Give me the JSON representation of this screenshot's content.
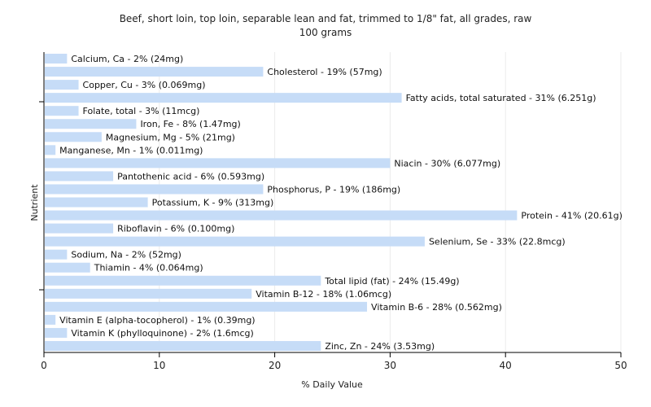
{
  "title_line1": "Beef, short loin, top loin, separable lean and fat, trimmed to 1/8\" fat, all grades, raw",
  "title_line2": "100 grams",
  "colors": {
    "bar": "#c6dcf7",
    "grid": "#ebebeb",
    "axis": "#000000"
  },
  "chart_data": {
    "type": "bar",
    "orientation": "horizontal",
    "xlabel": "% Daily Value",
    "ylabel": "Nutrient",
    "xlim": [
      0,
      50
    ],
    "xticks": [
      0,
      10,
      20,
      30,
      40,
      50
    ],
    "grid": true,
    "categories": [
      "Calcium, Ca",
      "Cholesterol",
      "Copper, Cu",
      "Fatty acids, total saturated",
      "Folate, total",
      "Iron, Fe",
      "Magnesium, Mg",
      "Manganese, Mn",
      "Niacin",
      "Pantothenic acid",
      "Phosphorus, P",
      "Potassium, K",
      "Protein",
      "Riboflavin",
      "Selenium, Se",
      "Sodium, Na",
      "Thiamin",
      "Total lipid (fat)",
      "Vitamin B-12",
      "Vitamin B-6",
      "Vitamin E (alpha-tocopherol)",
      "Vitamin K (phylloquinone)",
      "Zinc, Zn"
    ],
    "values": [
      2,
      19,
      3,
      31,
      3,
      8,
      5,
      1,
      30,
      6,
      19,
      9,
      41,
      6,
      33,
      2,
      4,
      24,
      18,
      28,
      1,
      2,
      24
    ],
    "labels": [
      "Calcium, Ca - 2% (24mg)",
      "Cholesterol - 19% (57mg)",
      "Copper, Cu - 3% (0.069mg)",
      "Fatty acids, total saturated - 31% (6.251g)",
      "Folate, total - 3% (11mcg)",
      "Iron, Fe - 8% (1.47mg)",
      "Magnesium, Mg - 5% (21mg)",
      "Manganese, Mn - 1% (0.011mg)",
      "Niacin - 30% (6.077mg)",
      "Pantothenic acid - 6% (0.593mg)",
      "Phosphorus, P - 19% (186mg)",
      "Potassium, K - 9% (313mg)",
      "Protein - 41% (20.61g)",
      "Riboflavin - 6% (0.100mg)",
      "Selenium, Se - 33% (22.8mcg)",
      "Sodium, Na - 2% (52mg)",
      "Thiamin - 4% (0.064mg)",
      "Total lipid (fat) - 24% (15.49g)",
      "Vitamin B-12 - 18% (1.06mcg)",
      "Vitamin B-6 - 28% (0.562mg)",
      "Vitamin E (alpha-tocopherol) - 1% (0.39mg)",
      "Vitamin K (phylloquinone) - 2% (1.6mcg)",
      "Zinc, Zn - 24% (3.53mg)"
    ]
  }
}
